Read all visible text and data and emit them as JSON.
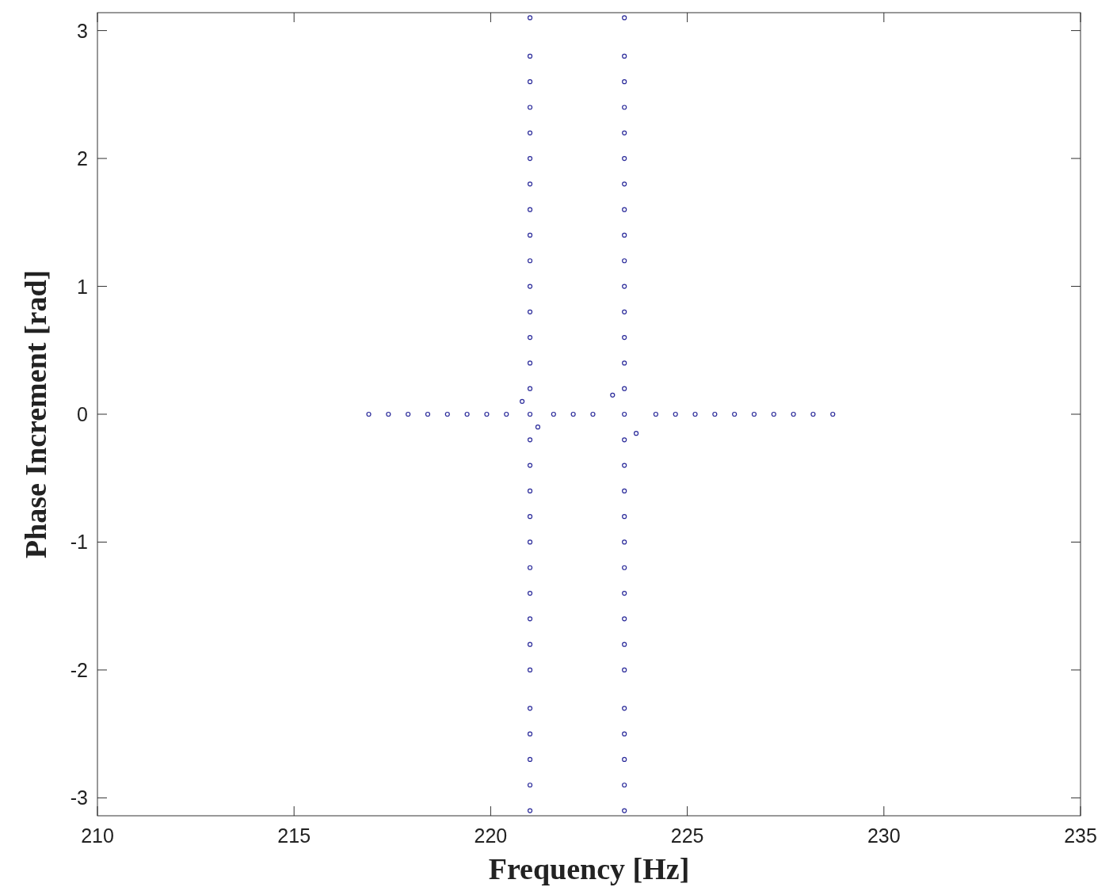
{
  "chart_data": {
    "type": "scatter",
    "xlabel": "Frequency [Hz]",
    "ylabel": "Phase Increment [rad]",
    "xlim": [
      210,
      235
    ],
    "xticks": [
      210,
      215,
      220,
      225,
      230,
      235
    ],
    "ylim": [
      -3.14,
      3.14
    ],
    "yticks": [
      -3,
      -2,
      -1,
      0,
      1,
      2,
      3
    ],
    "grid": false,
    "marker": "circle",
    "series": [
      {
        "color": "#2a2a9a",
        "x": [
          221,
          221,
          221,
          221,
          221,
          221,
          221,
          221,
          221,
          221,
          221,
          221,
          221,
          221,
          221,
          221,
          221,
          221,
          221,
          221,
          221,
          221,
          221,
          221,
          221,
          221,
          221,
          221,
          221,
          221
        ],
        "values": [
          -3.1,
          -2.9,
          -2.7,
          -2.5,
          -2.3,
          -2.0,
          -1.8,
          -1.6,
          -1.4,
          -1.2,
          -1.0,
          -0.8,
          -0.6,
          -0.4,
          -0.2,
          0.2,
          0.4,
          0.6,
          0.8,
          1.0,
          1.2,
          1.4,
          1.6,
          1.8,
          2.0,
          2.2,
          2.4,
          2.6,
          2.8,
          3.1
        ]
      },
      {
        "color": "#2a2a9a",
        "x": [
          223.4,
          223.4,
          223.4,
          223.4,
          223.4,
          223.4,
          223.4,
          223.4,
          223.4,
          223.4,
          223.4,
          223.4,
          223.4,
          223.4,
          223.4,
          223.4,
          223.4,
          223.4,
          223.4,
          223.4,
          223.4,
          223.4,
          223.4,
          223.4,
          223.4,
          223.4,
          223.4,
          223.4,
          223.4,
          223.4
        ],
        "values": [
          -3.1,
          -2.9,
          -2.7,
          -2.5,
          -2.3,
          -2.0,
          -1.8,
          -1.6,
          -1.4,
          -1.2,
          -1.0,
          -0.8,
          -0.6,
          -0.4,
          -0.2,
          0.2,
          0.4,
          0.6,
          0.8,
          1.0,
          1.2,
          1.4,
          1.6,
          1.8,
          2.0,
          2.2,
          2.4,
          2.6,
          2.8,
          3.1
        ]
      },
      {
        "color": "#2a2a9a",
        "x": [
          216.9,
          217.4,
          217.9,
          218.4,
          218.9,
          219.4,
          219.9,
          220.4,
          220.8,
          221,
          221.2,
          221.6,
          222.1,
          222.6,
          223.1,
          223.4,
          223.7,
          224.2,
          224.7,
          225.2,
          225.7,
          226.2,
          226.7,
          227.2,
          227.7,
          228.2,
          228.7
        ],
        "values": [
          0,
          0,
          0,
          0,
          0,
          0,
          0,
          0,
          0.1,
          0,
          -0.1,
          0,
          0,
          0,
          0.15,
          0,
          -0.15,
          0,
          0,
          0,
          0,
          0,
          0,
          0,
          0,
          0,
          0
        ]
      }
    ]
  }
}
